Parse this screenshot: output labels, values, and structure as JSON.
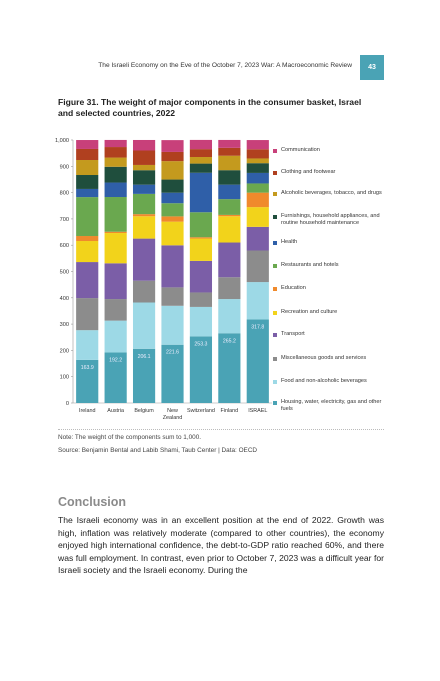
{
  "header": {
    "running_title": "The Israeli Economy on the Eve of the October 7, 2023 War: A Macroeconomic Review",
    "page_number": "43"
  },
  "figure": {
    "title": "Figure 31. The weight of major components in the consumer basket, Israel and selected countries, 2022",
    "note": "Note: The weight of the components sum to 1,000.",
    "source": "Source: Benjamin Bental and Labib Shami, Taub Center | Data: OECD"
  },
  "chart_data": {
    "type": "stacked_bar",
    "categories": [
      "Ireland",
      "Austria",
      "Belgium",
      "New Zealand",
      "Switzerland",
      "Finland",
      "ISRAEL"
    ],
    "ylim": [
      0,
      1000
    ],
    "yticks": [
      0,
      100,
      200,
      300,
      400,
      500,
      600,
      700,
      800,
      900,
      {
        "value": 1000,
        "label": "1,000"
      }
    ],
    "grid": false,
    "legend": "right",
    "series": [
      {
        "name": "Housing, water, electricity, gas and other fuels",
        "color": "#4aa3b5",
        "values": [
          163.9,
          192.2,
          206.1,
          221.6,
          253.3,
          265.2,
          317.8
        ]
      },
      {
        "name": "Food and non-alcoholic beverages",
        "color": "#9dd9e6",
        "values": [
          113,
          121,
          176,
          148,
          112,
          130,
          142
        ]
      },
      {
        "name": "Miscellaneous goods and services",
        "color": "#8c8c8c",
        "values": [
          122,
          82,
          83,
          70,
          55,
          83,
          120
        ]
      },
      {
        "name": "Transport",
        "color": "#7b5ea7",
        "values": [
          137,
          136,
          160,
          160,
          120,
          132,
          90
        ]
      },
      {
        "name": "Recreation and culture",
        "color": "#f2d31b",
        "values": [
          80,
          115,
          85,
          90,
          85,
          100,
          75
        ]
      },
      {
        "name": "Education",
        "color": "#f08a2c",
        "values": [
          19,
          5,
          8,
          20,
          5,
          5,
          55
        ]
      },
      {
        "name": "Restaurants and hotels",
        "color": "#6aa84f",
        "values": [
          148,
          132,
          77,
          50,
          95,
          60,
          35
        ]
      },
      {
        "name": "Health",
        "color": "#2f5fa8",
        "values": [
          31,
          55,
          35,
          40,
          150,
          55,
          40
        ]
      },
      {
        "name": "Furnishings, household appliances, and routine household maintenance",
        "color": "#1f4e3d",
        "values": [
          53,
          60,
          55,
          50,
          35,
          55,
          37
        ]
      },
      {
        "name": "Alcoholic beverages, tobacco, and drugs",
        "color": "#c49a1e",
        "values": [
          57,
          35,
          20,
          70,
          25,
          55,
          18
        ]
      },
      {
        "name": "Clothing and footwear",
        "color": "#b0401f",
        "values": [
          42,
          40,
          55,
          35,
          30,
          30,
          35
        ]
      },
      {
        "name": "Communication",
        "color": "#c8407a",
        "values": [
          34,
          27,
          40,
          45,
          35,
          30,
          35
        ]
      }
    ]
  },
  "conclusion": {
    "heading": "Conclusion",
    "text": "The Israeli economy was in an excellent position at the end of 2022. Growth was high, inflation was relatively moderate (compared to other countries), the economy enjoyed high international confidence, the debt-to-GDP ratio reached 60%, and there was full employment. In contrast, even prior to October 7, 2023 was a difficult year for Israeli society and the Israeli economy. During the"
  }
}
